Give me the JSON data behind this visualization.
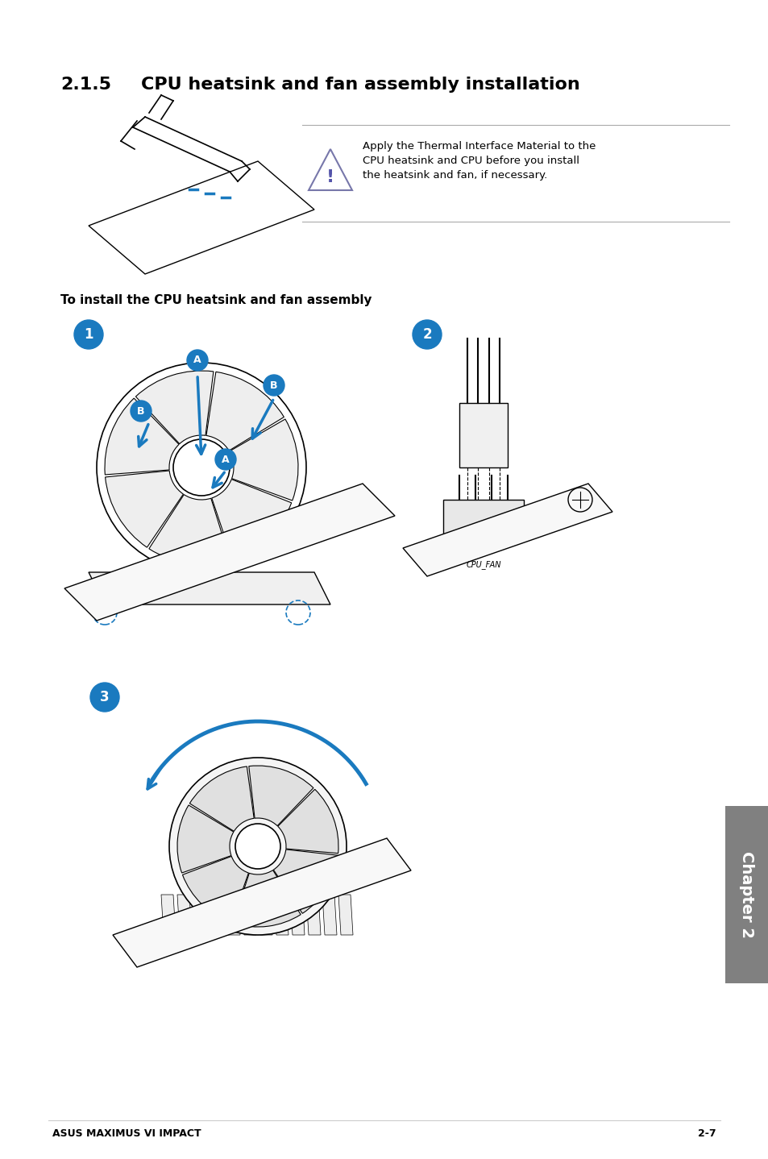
{
  "title_number": "2.1.5",
  "title_text": "CPU heatsink and fan assembly installation",
  "warning_text": "Apply the Thermal Interface Material to the\nCPU heatsink and CPU before you install\nthe heatsink and fan, if necessary.",
  "install_heading": "To install the CPU heatsink and fan assembly",
  "footer_left": "ASUS MAXIMUS VI IMPACT",
  "footer_right": "2-7",
  "chapter_tab": "Chapter 2",
  "bg_color": "#ffffff",
  "tab_color": "#808080",
  "blue_color": "#1a7abf",
  "warning_border_color": "#9999cc",
  "title_fontsize": 16,
  "body_fontsize": 10,
  "footer_fontsize": 9,
  "tab_fontsize": 14
}
